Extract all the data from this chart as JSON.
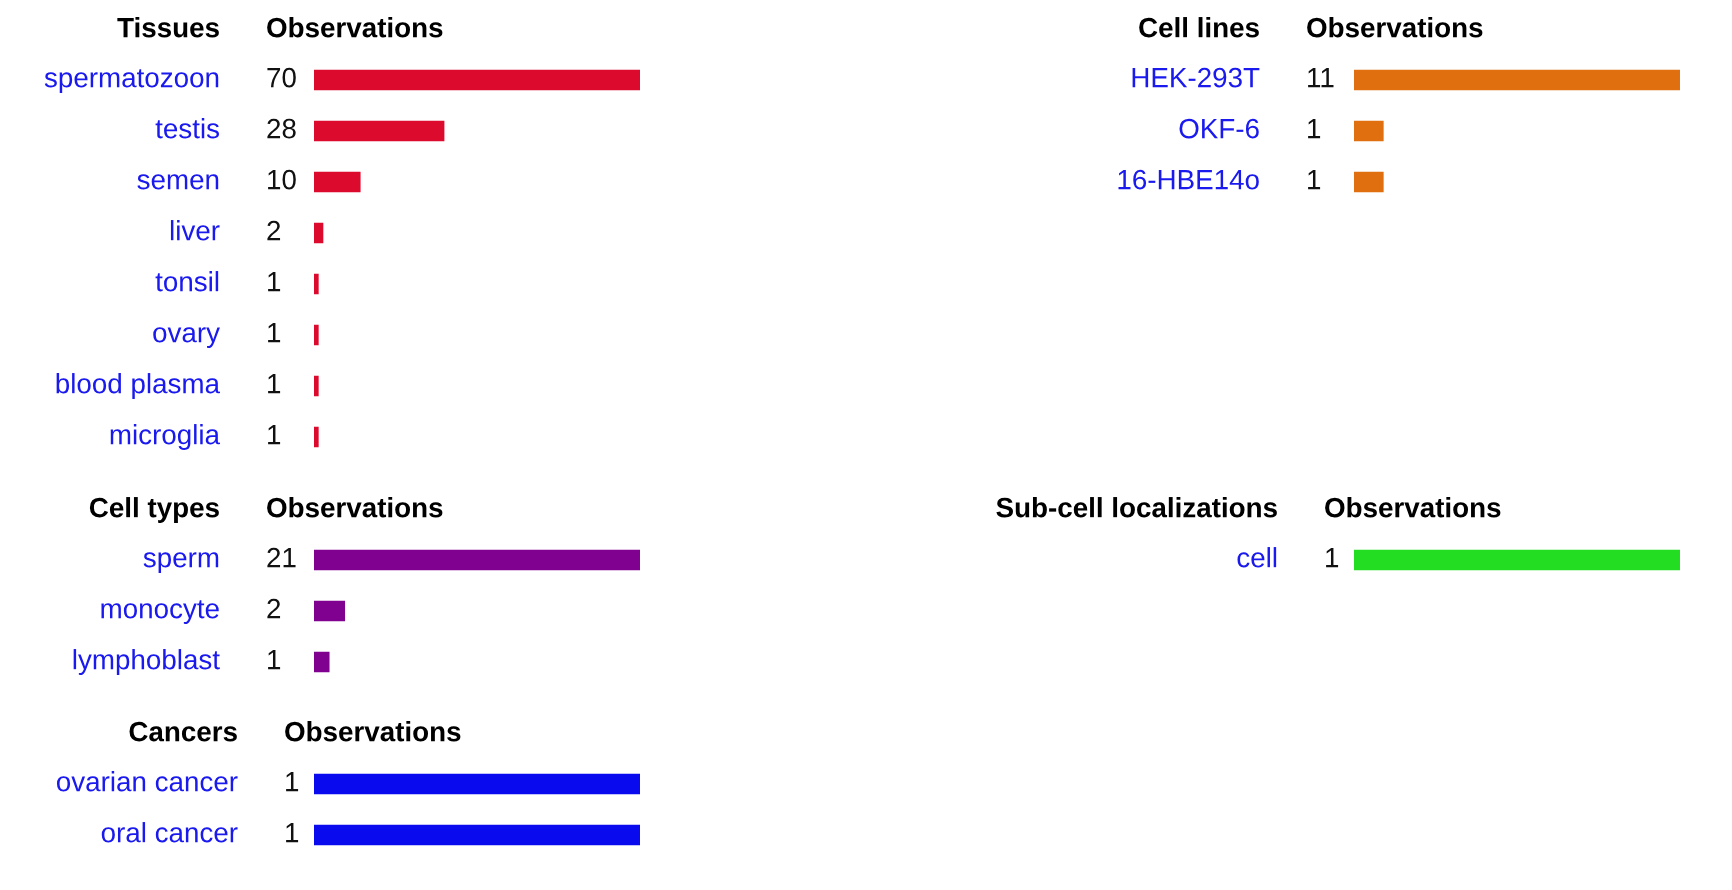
{
  "chart_data": [
    {
      "type": "bar",
      "orientation": "horizontal",
      "ylabel": "Tissues",
      "xlabel": "Observations",
      "categories": [
        "spermatozoon",
        "testis",
        "semen",
        "liver",
        "tonsil",
        "ovary",
        "blood plasma",
        "microglia"
      ],
      "values": [
        70,
        28,
        10,
        2,
        1,
        1,
        1,
        1
      ],
      "color": "#dc0a2d",
      "data_labels": true
    },
    {
      "type": "bar",
      "orientation": "horizontal",
      "ylabel": "Cell lines",
      "xlabel": "Observations",
      "categories": [
        "HEK-293T",
        "OKF-6",
        "16-HBE14o"
      ],
      "values": [
        11,
        1,
        1
      ],
      "color": "#e0700f",
      "data_labels": true
    },
    {
      "type": "bar",
      "orientation": "horizontal",
      "ylabel": "Cell types",
      "xlabel": "Observations",
      "categories": [
        "sperm",
        "monocyte",
        "lymphoblast"
      ],
      "values": [
        21,
        2,
        1
      ],
      "color": "#800090",
      "data_labels": true
    },
    {
      "type": "bar",
      "orientation": "horizontal",
      "ylabel": "Sub-cell localizations",
      "xlabel": "Observations",
      "categories": [
        "cell"
      ],
      "values": [
        1
      ],
      "color": "#22dd22",
      "data_labels": true
    },
    {
      "type": "bar",
      "orientation": "horizontal",
      "ylabel": "Cancers",
      "xlabel": "Observations",
      "categories": [
        "ovarian cancer",
        "oral cancer"
      ],
      "values": [
        1,
        1
      ],
      "color": "#0a0aee",
      "data_labels": true
    }
  ]
}
